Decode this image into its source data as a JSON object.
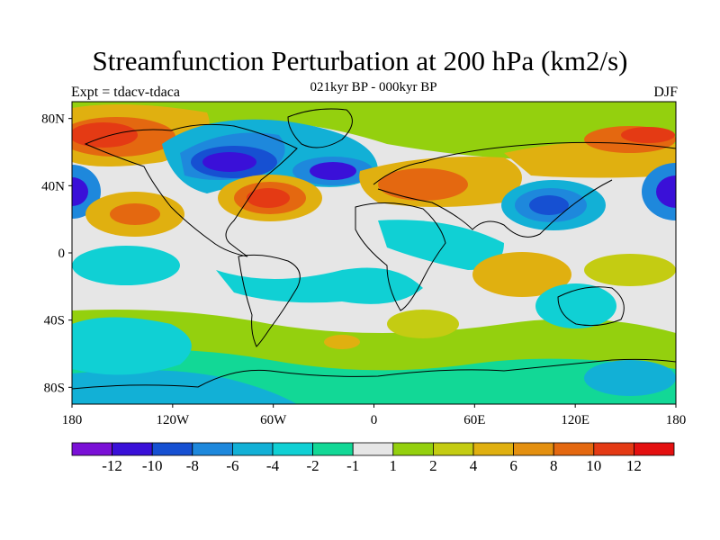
{
  "header": {
    "title": "Streamfunction Perturbation at 200 hPa (km2/s)",
    "subtitle": "021kyr BP - 000kyr BP",
    "left_label": "Expt = tdacv-tdaca",
    "right_label": "DJF"
  },
  "map": {
    "projection": "cylindrical-equidistant",
    "lon_range": [
      -180,
      180
    ],
    "lat_range": [
      -90,
      90
    ],
    "background_color": "#e6e6e6",
    "lat_ticks": [
      {
        "value": 80,
        "label": "80N"
      },
      {
        "value": 40,
        "label": "40N"
      },
      {
        "value": 0,
        "label": "0"
      },
      {
        "value": -40,
        "label": "40S"
      },
      {
        "value": -80,
        "label": "80S"
      }
    ],
    "lon_ticks": [
      {
        "value": -180,
        "label": "180"
      },
      {
        "value": -120,
        "label": "120W"
      },
      {
        "value": -60,
        "label": "60W"
      },
      {
        "value": 0,
        "label": "0"
      },
      {
        "value": 60,
        "label": "60E"
      },
      {
        "value": 120,
        "label": "120E"
      },
      {
        "value": 180,
        "label": "180"
      }
    ]
  },
  "colorbar": {
    "colors": [
      "#7a10d6",
      "#3a10d8",
      "#1650d2",
      "#1e88dc",
      "#12b0d6",
      "#10d0d4",
      "#12d896",
      "#e6e6e6",
      "#94d00e",
      "#c4cc12",
      "#e0b010",
      "#e49010",
      "#e46810",
      "#e43a14",
      "#e41010"
    ],
    "labels": [
      "-12",
      "-10",
      "-8",
      "-6",
      "-4",
      "-2",
      "-1",
      "1",
      "2",
      "4",
      "6",
      "8",
      "10",
      "12"
    ]
  }
}
